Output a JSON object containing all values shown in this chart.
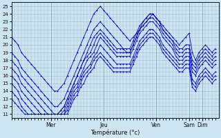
{
  "xlabel": "Température (°c)",
  "bg_color": "#cce5f0",
  "grid_color": "#99bbcc",
  "line_color": "#0000cc",
  "ylim": [
    10.5,
    25.5
  ],
  "yticks": [
    11,
    12,
    13,
    14,
    15,
    16,
    17,
    18,
    19,
    20,
    21,
    22,
    23,
    24,
    25
  ],
  "day_labels": [
    "Mer",
    "Jeu",
    "Ven",
    "Sam",
    "Dim"
  ],
  "day_x": [
    12,
    28,
    44,
    54,
    58
  ],
  "xlim": [
    0,
    63
  ],
  "n_points": 63,
  "series": [
    [
      21.0,
      20.5,
      20.0,
      19.0,
      18.5,
      18.0,
      17.5,
      17.0,
      16.5,
      16.0,
      15.5,
      15.0,
      14.5,
      14.0,
      14.0,
      14.5,
      15.0,
      16.0,
      17.0,
      18.0,
      19.0,
      20.0,
      21.0,
      22.0,
      23.0,
      24.0,
      24.5,
      25.0,
      24.5,
      24.0,
      23.5,
      23.0,
      22.5,
      22.0,
      21.5,
      21.0,
      20.5,
      21.0,
      21.5,
      22.0,
      22.5,
      23.0,
      23.5,
      24.0,
      23.5,
      23.0,
      22.5,
      22.0,
      21.5,
      21.0,
      20.5,
      20.0,
      20.5,
      21.0,
      21.5,
      19.0,
      18.0,
      19.0,
      19.5,
      20.0,
      19.5,
      19.0,
      19.5
    ],
    [
      19.0,
      18.5,
      18.0,
      17.0,
      16.5,
      16.0,
      15.5,
      15.0,
      14.5,
      14.0,
      13.5,
      13.0,
      12.5,
      12.0,
      12.0,
      12.5,
      13.0,
      14.0,
      15.0,
      16.0,
      17.0,
      18.0,
      19.0,
      20.0,
      21.0,
      22.0,
      22.5,
      23.0,
      22.5,
      22.0,
      21.5,
      21.0,
      20.5,
      20.0,
      19.5,
      19.0,
      19.0,
      20.0,
      21.0,
      22.0,
      23.0,
      23.5,
      24.0,
      24.0,
      23.5,
      23.0,
      22.0,
      21.5,
      21.0,
      20.5,
      20.0,
      19.5,
      19.5,
      20.0,
      20.0,
      18.0,
      17.5,
      18.5,
      19.0,
      19.5,
      19.0,
      18.5,
      19.0
    ],
    [
      18.0,
      17.5,
      17.0,
      16.0,
      15.5,
      15.0,
      14.5,
      14.0,
      13.5,
      13.0,
      12.5,
      12.0,
      11.5,
      11.0,
      11.0,
      11.5,
      12.0,
      13.0,
      14.0,
      15.0,
      16.0,
      17.0,
      18.0,
      19.0,
      20.0,
      21.0,
      21.5,
      22.0,
      21.5,
      21.0,
      20.5,
      20.0,
      19.5,
      19.5,
      19.5,
      19.5,
      19.5,
      20.5,
      21.5,
      22.5,
      23.0,
      23.5,
      24.0,
      24.0,
      23.5,
      23.0,
      22.0,
      21.5,
      21.0,
      20.5,
      19.5,
      19.0,
      19.0,
      19.5,
      19.5,
      17.5,
      17.0,
      18.0,
      18.5,
      19.0,
      18.5,
      18.0,
      18.5
    ],
    [
      17.0,
      16.5,
      16.0,
      15.0,
      14.5,
      14.0,
      13.5,
      13.0,
      12.5,
      12.0,
      11.5,
      11.0,
      11.0,
      11.0,
      11.0,
      11.5,
      12.0,
      13.0,
      14.0,
      15.0,
      16.0,
      17.0,
      18.0,
      18.5,
      19.0,
      20.0,
      21.0,
      21.5,
      21.0,
      20.5,
      20.0,
      19.5,
      19.0,
      19.0,
      19.0,
      19.0,
      19.0,
      20.0,
      21.0,
      22.0,
      22.5,
      23.0,
      23.5,
      23.5,
      23.0,
      22.5,
      21.5,
      21.0,
      20.5,
      20.0,
      19.0,
      18.5,
      18.5,
      19.0,
      19.0,
      17.0,
      16.5,
      17.5,
      18.0,
      18.5,
      18.0,
      17.5,
      18.0
    ],
    [
      16.0,
      15.5,
      15.0,
      14.0,
      13.5,
      13.0,
      12.5,
      12.0,
      11.5,
      11.0,
      11.0,
      11.0,
      11.0,
      11.0,
      11.0,
      11.0,
      11.5,
      12.5,
      13.5,
      14.5,
      15.0,
      16.0,
      17.0,
      18.0,
      18.5,
      19.0,
      20.0,
      21.0,
      20.5,
      20.0,
      19.5,
      19.0,
      18.5,
      18.5,
      18.5,
      18.5,
      18.5,
      19.5,
      20.5,
      21.5,
      22.0,
      22.5,
      23.0,
      23.0,
      22.5,
      22.0,
      21.0,
      20.5,
      20.0,
      19.5,
      18.5,
      18.0,
      18.0,
      18.5,
      18.5,
      16.5,
      16.0,
      17.0,
      17.5,
      18.0,
      17.5,
      17.0,
      17.5
    ],
    [
      15.0,
      14.5,
      14.0,
      13.0,
      12.5,
      12.0,
      11.5,
      11.0,
      11.0,
      11.0,
      11.0,
      11.0,
      11.0,
      11.0,
      11.0,
      11.0,
      11.0,
      12.0,
      13.0,
      14.0,
      14.5,
      15.5,
      16.5,
      17.0,
      17.5,
      18.5,
      19.0,
      20.0,
      19.5,
      19.0,
      18.5,
      18.0,
      17.5,
      17.5,
      17.5,
      17.5,
      17.5,
      18.5,
      19.5,
      20.5,
      21.0,
      21.5,
      22.0,
      22.0,
      21.5,
      21.0,
      20.0,
      19.5,
      19.0,
      18.5,
      18.0,
      17.5,
      17.5,
      18.0,
      18.0,
      15.5,
      15.0,
      16.0,
      16.5,
      17.0,
      16.5,
      16.0,
      16.5
    ],
    [
      14.0,
      13.5,
      13.0,
      12.0,
      11.5,
      11.0,
      11.0,
      11.0,
      11.0,
      11.0,
      11.0,
      11.0,
      11.0,
      11.0,
      11.0,
      11.0,
      11.0,
      11.5,
      12.5,
      13.5,
      14.0,
      15.0,
      16.0,
      16.5,
      17.0,
      18.0,
      18.5,
      19.0,
      18.5,
      18.0,
      17.5,
      17.0,
      17.0,
      17.0,
      17.0,
      17.0,
      17.0,
      18.0,
      19.0,
      20.0,
      20.5,
      21.0,
      21.5,
      21.5,
      21.0,
      20.5,
      19.5,
      19.0,
      18.5,
      18.0,
      17.5,
      17.0,
      17.0,
      17.5,
      17.5,
      15.0,
      14.5,
      15.5,
      16.0,
      16.5,
      16.0,
      15.5,
      16.0
    ],
    [
      13.0,
      12.5,
      12.0,
      11.5,
      11.0,
      11.0,
      11.0,
      11.0,
      11.0,
      11.0,
      11.0,
      11.0,
      11.0,
      11.0,
      11.0,
      11.0,
      11.0,
      11.0,
      12.0,
      13.0,
      13.5,
      14.5,
      15.0,
      16.0,
      16.5,
      17.0,
      18.0,
      18.5,
      18.0,
      17.5,
      17.0,
      16.5,
      16.5,
      16.5,
      16.5,
      16.5,
      16.5,
      17.5,
      18.5,
      19.5,
      20.0,
      20.5,
      21.0,
      21.0,
      20.5,
      20.0,
      19.0,
      18.5,
      18.0,
      17.5,
      17.0,
      16.5,
      16.5,
      17.0,
      17.0,
      14.5,
      14.0,
      15.0,
      15.5,
      16.0,
      15.5,
      15.0,
      15.5
    ]
  ]
}
